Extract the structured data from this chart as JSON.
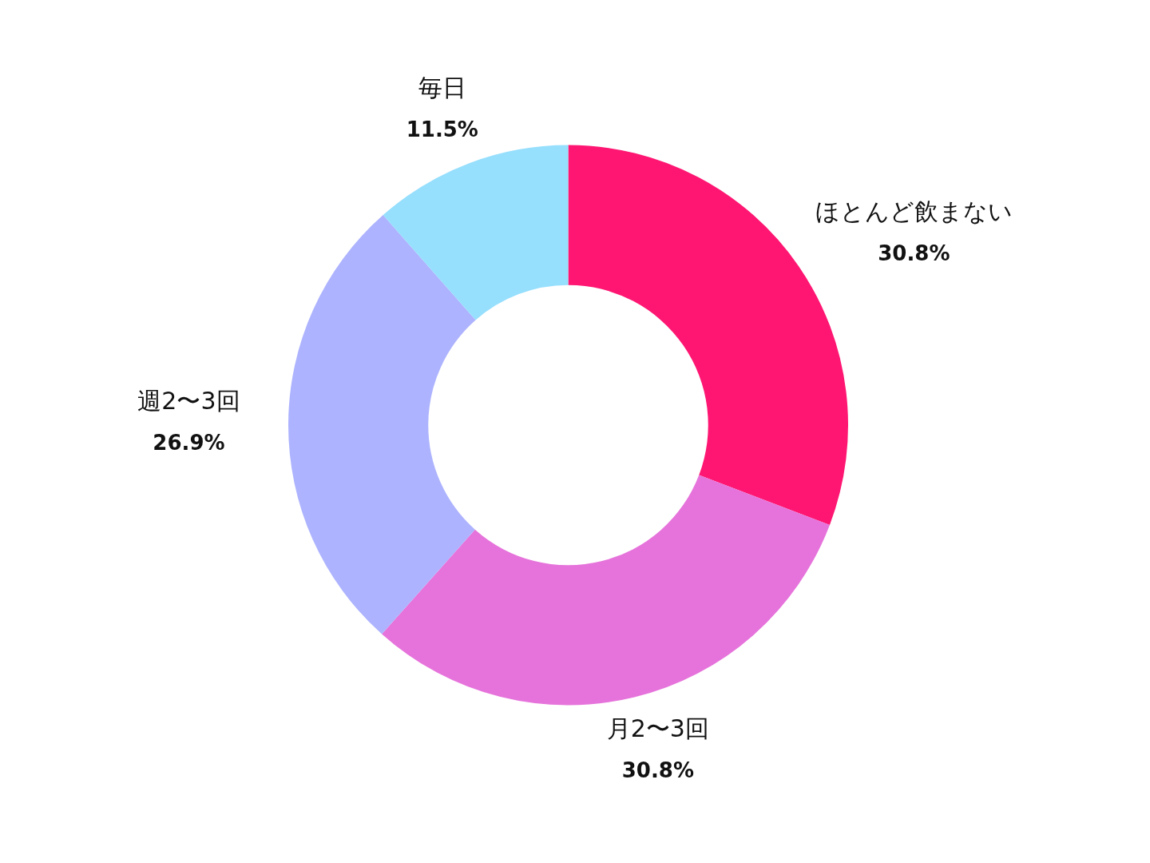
{
  "chart_data": {
    "type": "donut",
    "categories": [
      "ほとんど飲まない",
      "月2〜3回",
      "週2〜3回",
      "毎日"
    ],
    "values": [
      30.8,
      30.8,
      26.9,
      11.5
    ],
    "colors": [
      "#fe1672",
      "#e673db",
      "#adb3fe",
      "#96dffd"
    ],
    "value_labels": [
      "30.8%",
      "30.8%",
      "26.9%",
      "11.5%"
    ],
    "legend": false
  }
}
